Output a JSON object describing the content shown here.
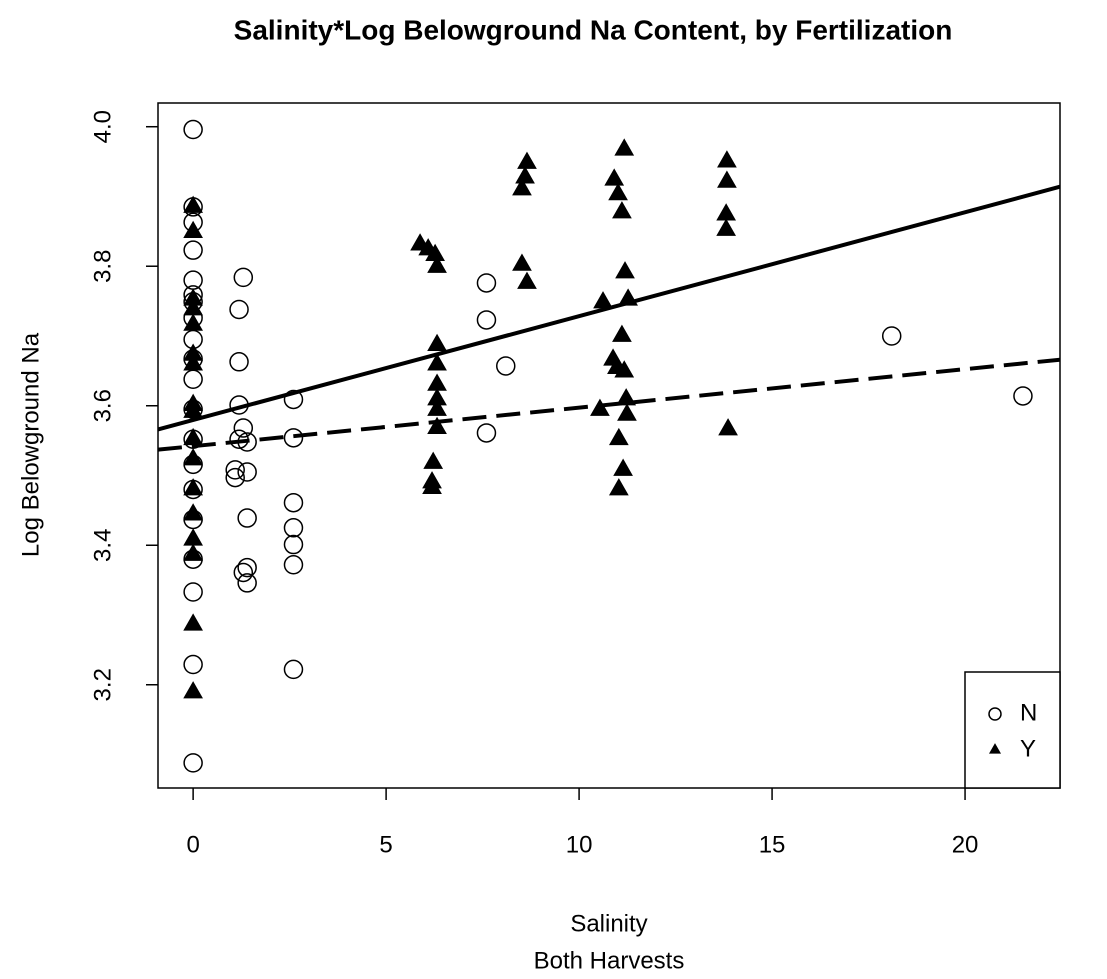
{
  "chart_data": {
    "type": "scatter",
    "title": "Salinity*Log Belowground Na Content, by Fertilization",
    "xlabel": "Salinity",
    "subtitle": "Both Harvests",
    "ylabel": "Log Belowground Na",
    "xlim": [
      -0.91,
      22.46
    ],
    "ylim": [
      3.052,
      4.034
    ],
    "xticks": [
      0,
      5,
      10,
      15,
      20
    ],
    "yticks": [
      3.2,
      3.4,
      3.6,
      3.8,
      {
        "value": 4,
        "label": "4.0"
      }
    ],
    "legend": "bottomright",
    "series": [
      {
        "name": "N",
        "marker": "circle",
        "color": "#000000",
        "x": [
          0,
          0,
          0,
          0,
          0,
          0,
          0,
          0,
          0,
          0,
          0,
          0,
          0,
          0,
          0,
          0,
          0,
          0,
          0,
          0,
          1.09,
          1.09,
          1.19,
          1.19,
          1.19,
          1.19,
          1.3,
          1.3,
          1.4,
          1.4,
          1.4,
          1.3,
          1.4,
          1.4,
          2.6,
          2.6,
          2.6,
          2.6,
          2.6,
          2.6,
          2.6,
          7.6,
          7.6,
          7.6,
          8.1,
          18.1,
          21.5
        ],
        "y": [
          3.996,
          3.885,
          3.863,
          3.823,
          3.78,
          3.759,
          3.749,
          3.726,
          3.695,
          3.667,
          3.638,
          3.595,
          3.552,
          3.516,
          3.48,
          3.437,
          3.38,
          3.333,
          3.229,
          3.088,
          3.508,
          3.497,
          3.552,
          3.601,
          3.663,
          3.738,
          3.784,
          3.568,
          3.548,
          3.505,
          3.439,
          3.361,
          3.368,
          3.346,
          3.609,
          3.554,
          3.461,
          3.425,
          3.401,
          3.372,
          3.222,
          3.776,
          3.723,
          3.561,
          3.657,
          3.7,
          3.614
        ],
        "fit": {
          "x": [
            -0.91,
            22.46
          ],
          "y": [
            3.537,
            3.666
          ],
          "dash": true
        }
      },
      {
        "name": "Y",
        "marker": "triangle",
        "color": "#000000",
        "x": [
          0,
          0,
          0,
          0,
          0,
          0,
          0,
          0,
          0,
          0,
          0,
          0,
          0,
          0,
          0,
          0,
          0,
          5.88,
          6.09,
          6.27,
          6.32,
          6.32,
          6.32,
          6.32,
          6.32,
          6.32,
          6.32,
          6.22,
          6.19,
          6.19,
          8.65,
          8.6,
          8.52,
          8.52,
          8.65,
          10.62,
          10.54,
          10.91,
          11.01,
          11.17,
          11.11,
          11.19,
          11.27,
          11.11,
          10.88,
          10.98,
          11.17,
          11.22,
          11.24,
          11.03,
          11.14,
          11.03,
          13.83,
          13.83,
          13.81,
          13.81,
          13.86
        ],
        "y": [
          3.885,
          3.849,
          3.752,
          3.738,
          3.716,
          3.673,
          3.659,
          3.601,
          3.591,
          3.552,
          3.523,
          3.48,
          3.444,
          3.408,
          3.386,
          3.286,
          3.189,
          3.831,
          3.824,
          3.816,
          3.799,
          3.687,
          3.659,
          3.63,
          3.609,
          3.594,
          3.568,
          3.518,
          3.49,
          3.482,
          3.948,
          3.927,
          3.91,
          3.802,
          3.776,
          3.748,
          3.594,
          3.924,
          3.903,
          3.967,
          3.877,
          3.791,
          3.752,
          3.7,
          3.666,
          3.654,
          3.649,
          3.609,
          3.587,
          3.552,
          3.508,
          3.48,
          3.95,
          3.921,
          3.874,
          3.852,
          3.566
        ],
        "fit": {
          "x": [
            -0.91,
            22.46
          ],
          "y": [
            3.566,
            3.914
          ],
          "dash": false
        }
      }
    ]
  }
}
